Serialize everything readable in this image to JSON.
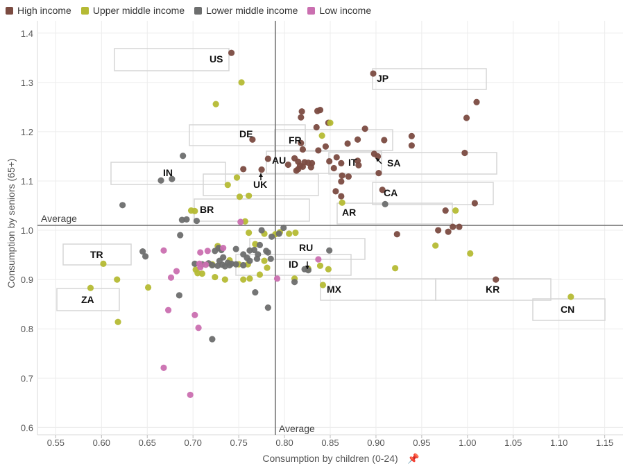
{
  "legend": [
    {
      "label": "High income",
      "color": "#7b4b41"
    },
    {
      "label": "Upper middle income",
      "color": "#b5ba34"
    },
    {
      "label": "Lower middle income",
      "color": "#6d6e6e"
    },
    {
      "label": "Low income",
      "color": "#ca6fb0"
    }
  ],
  "chart_data": {
    "type": "scatter",
    "xlabel": "Consumption by children (0-24)",
    "ylabel": "Consumption by seniors (65+)",
    "xlim": [
      0.53,
      1.17
    ],
    "ylim": [
      0.585,
      1.425
    ],
    "x_ticks": [
      "0.55",
      "0.60",
      "0.65",
      "0.70",
      "0.75",
      "0.80",
      "0.85",
      "0.90",
      "0.95",
      "1.00",
      "1.05",
      "1.10",
      "1.15"
    ],
    "y_ticks": [
      "0.6",
      "0.7",
      "0.8",
      "0.9",
      "1.0",
      "1.1",
      "1.2",
      "1.3",
      "1.4"
    ],
    "grid": true,
    "legend_position": "top-left",
    "reference_lines": {
      "x": {
        "value": 0.79,
        "label": "Average"
      },
      "y": {
        "value": 1.01,
        "label": "Average"
      }
    },
    "callouts": [
      "US",
      "JP",
      "DE",
      "FR",
      "IN",
      "AU",
      "IT",
      "SA",
      "UK",
      "CA",
      "BR",
      "AR",
      "RU",
      "TR",
      "ID",
      "ZA",
      "MX",
      "KR",
      "CN"
    ],
    "series": [
      {
        "name": "High income",
        "color": "#7b4b41",
        "points": [
          [
            0.742,
            1.36
          ],
          [
            0.897,
            1.318
          ],
          [
            1.01,
            1.26
          ],
          [
            0.999,
            1.228
          ],
          [
            0.839,
            1.244
          ],
          [
            0.836,
            1.242
          ],
          [
            0.819,
            1.241
          ],
          [
            0.818,
            1.229
          ],
          [
            0.848,
            1.218
          ],
          [
            0.835,
            1.209
          ],
          [
            0.888,
            1.206
          ],
          [
            0.939,
            1.191
          ],
          [
            0.765,
            1.184
          ],
          [
            0.909,
            1.183
          ],
          [
            0.88,
            1.184
          ],
          [
            0.869,
            1.176
          ],
          [
            0.818,
            1.177
          ],
          [
            0.845,
            1.17
          ],
          [
            0.939,
            1.172
          ],
          [
            0.82,
            1.164
          ],
          [
            0.837,
            1.162
          ],
          [
            0.997,
            1.157
          ],
          [
            0.898,
            1.155
          ],
          [
            0.902,
            1.15
          ],
          [
            0.857,
            1.148
          ],
          [
            0.782,
            1.145
          ],
          [
            0.811,
            1.146
          ],
          [
            0.849,
            1.14
          ],
          [
            0.88,
            1.141
          ],
          [
            0.815,
            1.139
          ],
          [
            0.822,
            1.138
          ],
          [
            0.826,
            1.137
          ],
          [
            0.83,
            1.136
          ],
          [
            0.862,
            1.136
          ],
          [
            0.804,
            1.133
          ],
          [
            0.817,
            1.131
          ],
          [
            0.82,
            1.129
          ],
          [
            0.829,
            1.128
          ],
          [
            0.881,
            1.132
          ],
          [
            0.755,
            1.124
          ],
          [
            0.775,
            1.123
          ],
          [
            0.815,
            1.124
          ],
          [
            0.854,
            1.126
          ],
          [
            0.813,
            1.121
          ],
          [
            0.863,
            1.111
          ],
          [
            0.903,
            1.116
          ],
          [
            0.87,
            1.109
          ],
          [
            0.862,
            1.099
          ],
          [
            0.907,
            1.082
          ],
          [
            0.856,
            1.079
          ],
          [
            0.862,
            1.069
          ],
          [
            1.008,
            1.055
          ],
          [
            0.976,
            1.04
          ],
          [
            0.923,
            0.992
          ],
          [
            0.968,
            1.0
          ],
          [
            0.979,
            0.997
          ],
          [
            0.984,
            1.007
          ],
          [
            0.991,
            1.007
          ],
          [
            1.031,
            0.9
          ]
        ]
      },
      {
        "name": "Upper middle income",
        "color": "#b5ba34",
        "points": [
          [
            0.753,
            1.3
          ],
          [
            0.725,
            1.256
          ],
          [
            0.85,
            1.218
          ],
          [
            0.841,
            1.192
          ],
          [
            0.748,
            1.107
          ],
          [
            0.738,
            1.092
          ],
          [
            0.751,
            1.068
          ],
          [
            0.761,
            1.07
          ],
          [
            0.863,
            1.056
          ],
          [
            0.698,
            1.04
          ],
          [
            0.702,
            1.039
          ],
          [
            0.987,
            1.04
          ],
          [
            0.757,
            1.018
          ],
          [
            0.761,
            0.995
          ],
          [
            0.778,
            0.993
          ],
          [
            0.79,
            0.992
          ],
          [
            0.795,
            0.996
          ],
          [
            0.812,
            0.995
          ],
          [
            0.805,
            0.993
          ],
          [
            0.965,
            0.969
          ],
          [
            0.727,
            0.968
          ],
          [
            0.768,
            0.972
          ],
          [
            1.003,
            0.953
          ],
          [
            0.778,
            0.938
          ],
          [
            0.74,
            0.939
          ],
          [
            0.76,
            0.931
          ],
          [
            0.602,
            0.932
          ],
          [
            0.75,
            0.931
          ],
          [
            0.839,
            0.928
          ],
          [
            0.721,
            0.931
          ],
          [
            0.703,
            0.92
          ],
          [
            0.781,
            0.924
          ],
          [
            0.848,
            0.921
          ],
          [
            0.921,
            0.923
          ],
          [
            0.826,
            0.922
          ],
          [
            0.71,
            0.912
          ],
          [
            0.705,
            0.913
          ],
          [
            0.773,
            0.91
          ],
          [
            0.724,
            0.905
          ],
          [
            0.762,
            0.902
          ],
          [
            0.617,
            0.9
          ],
          [
            0.755,
            0.9
          ],
          [
            0.735,
            0.9
          ],
          [
            0.811,
            0.902
          ],
          [
            0.842,
            0.889
          ],
          [
            0.588,
            0.883
          ],
          [
            0.651,
            0.884
          ],
          [
            0.618,
            0.814
          ],
          [
            1.113,
            0.865
          ]
        ]
      },
      {
        "name": "Lower middle income",
        "color": "#6d6e6e",
        "points": [
          [
            0.689,
            1.151
          ],
          [
            0.677,
            1.104
          ],
          [
            0.665,
            1.101
          ],
          [
            0.623,
            1.051
          ],
          [
            0.91,
            1.053
          ],
          [
            0.688,
            1.021
          ],
          [
            0.693,
            1.022
          ],
          [
            0.704,
            1.019
          ],
          [
            0.775,
            1.0
          ],
          [
            0.794,
            0.993
          ],
          [
            0.786,
            0.987
          ],
          [
            0.799,
            1.005
          ],
          [
            0.686,
            0.99
          ],
          [
            0.773,
            0.97
          ],
          [
            0.728,
            0.964
          ],
          [
            0.747,
            0.962
          ],
          [
            0.762,
            0.959
          ],
          [
            0.767,
            0.96
          ],
          [
            0.731,
            0.96
          ],
          [
            0.724,
            0.958
          ],
          [
            0.78,
            0.958
          ],
          [
            0.782,
            0.955
          ],
          [
            0.755,
            0.951
          ],
          [
            0.771,
            0.951
          ],
          [
            0.849,
            0.959
          ],
          [
            0.645,
            0.957
          ],
          [
            0.648,
            0.947
          ],
          [
            0.733,
            0.945
          ],
          [
            0.759,
            0.944
          ],
          [
            0.77,
            0.942
          ],
          [
            0.785,
            0.942
          ],
          [
            0.762,
            0.938
          ],
          [
            0.729,
            0.938
          ],
          [
            0.738,
            0.934
          ],
          [
            0.742,
            0.932
          ],
          [
            0.747,
            0.931
          ],
          [
            0.732,
            0.93
          ],
          [
            0.74,
            0.929
          ],
          [
            0.717,
            0.933
          ],
          [
            0.721,
            0.929
          ],
          [
            0.702,
            0.932
          ],
          [
            0.727,
            0.928
          ],
          [
            0.735,
            0.927
          ],
          [
            0.755,
            0.929
          ],
          [
            0.71,
            0.931
          ],
          [
            0.822,
            0.921
          ],
          [
            0.826,
            0.919
          ],
          [
            0.811,
            0.895
          ],
          [
            0.768,
            0.874
          ],
          [
            0.685,
            0.868
          ],
          [
            0.782,
            0.843
          ],
          [
            0.721,
            0.779
          ]
        ]
      },
      {
        "name": "Low income",
        "color": "#ca6fb0",
        "points": [
          [
            0.752,
            1.017
          ],
          [
            0.668,
            0.959
          ],
          [
            0.708,
            0.955
          ],
          [
            0.733,
            0.964
          ],
          [
            0.716,
            0.958
          ],
          [
            0.707,
            0.932
          ],
          [
            0.714,
            0.93
          ],
          [
            0.837,
            0.941
          ],
          [
            0.682,
            0.917
          ],
          [
            0.676,
            0.904
          ],
          [
            0.708,
            0.925
          ],
          [
            0.792,
            0.902
          ],
          [
            0.673,
            0.838
          ],
          [
            0.702,
            0.828
          ],
          [
            0.706,
            0.802
          ],
          [
            0.668,
            0.721
          ],
          [
            0.697,
            0.666
          ]
        ]
      }
    ]
  }
}
